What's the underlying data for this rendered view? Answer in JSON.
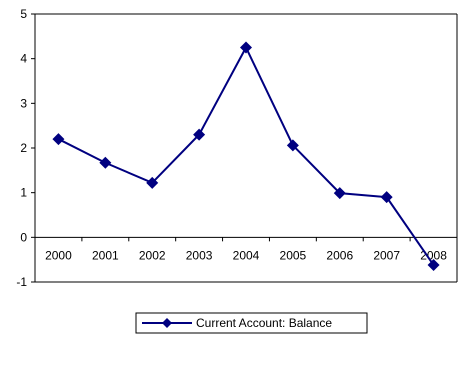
{
  "chart_data": {
    "type": "line",
    "title": "",
    "xlabel": "",
    "ylabel": "",
    "categories": [
      "2000",
      "2001",
      "2002",
      "2003",
      "2004",
      "2005",
      "2006",
      "2007",
      "2008"
    ],
    "series": [
      {
        "name": "Current Account: Balance",
        "values": [
          2.2,
          1.67,
          1.22,
          2.3,
          4.25,
          2.06,
          0.99,
          0.9,
          -0.62
        ],
        "color": "#000080",
        "marker": "diamond"
      }
    ],
    "ylim": [
      -1,
      5
    ],
    "yticks": [
      "-1",
      "0",
      "1",
      "2",
      "3",
      "4",
      "5"
    ],
    "grid": false,
    "legend": "bottom"
  }
}
